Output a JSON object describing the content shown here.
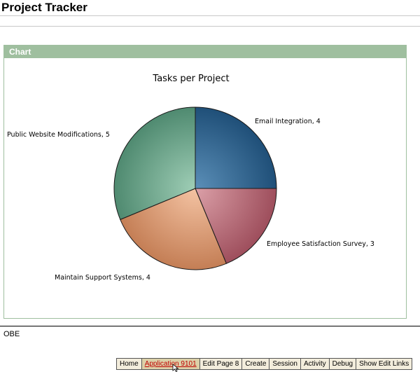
{
  "app": {
    "title": "Project Tracker"
  },
  "region": {
    "title": "Chart"
  },
  "chart_data": {
    "type": "pie",
    "title": "Tasks per Project",
    "slices": [
      {
        "label": "Email Integration",
        "value": 4,
        "display": "Email Integration, 4",
        "colors": [
          "#5b8fb8",
          "#1f4f78"
        ]
      },
      {
        "label": "Employee Satisfaction Survey",
        "value": 3,
        "display": "Employee Satisfaction Survey, 3",
        "colors": [
          "#dba0a8",
          "#9e4e5c"
        ]
      },
      {
        "label": "Maintain Support Systems",
        "value": 4,
        "display": "Maintain Support Systems, 4",
        "colors": [
          "#f4c3a3",
          "#c47e55"
        ]
      },
      {
        "label": "Public Website Modifications",
        "value": 5,
        "display": "Public Website Modifications, 5",
        "colors": [
          "#9fceb6",
          "#4f8a70"
        ]
      }
    ]
  },
  "footer": {
    "text": "OBE"
  },
  "toolbar": {
    "items": [
      "Home",
      "Application 9101",
      "Edit Page 8",
      "Create",
      "Session",
      "Activity",
      "Debug",
      "Show Edit Links"
    ]
  }
}
